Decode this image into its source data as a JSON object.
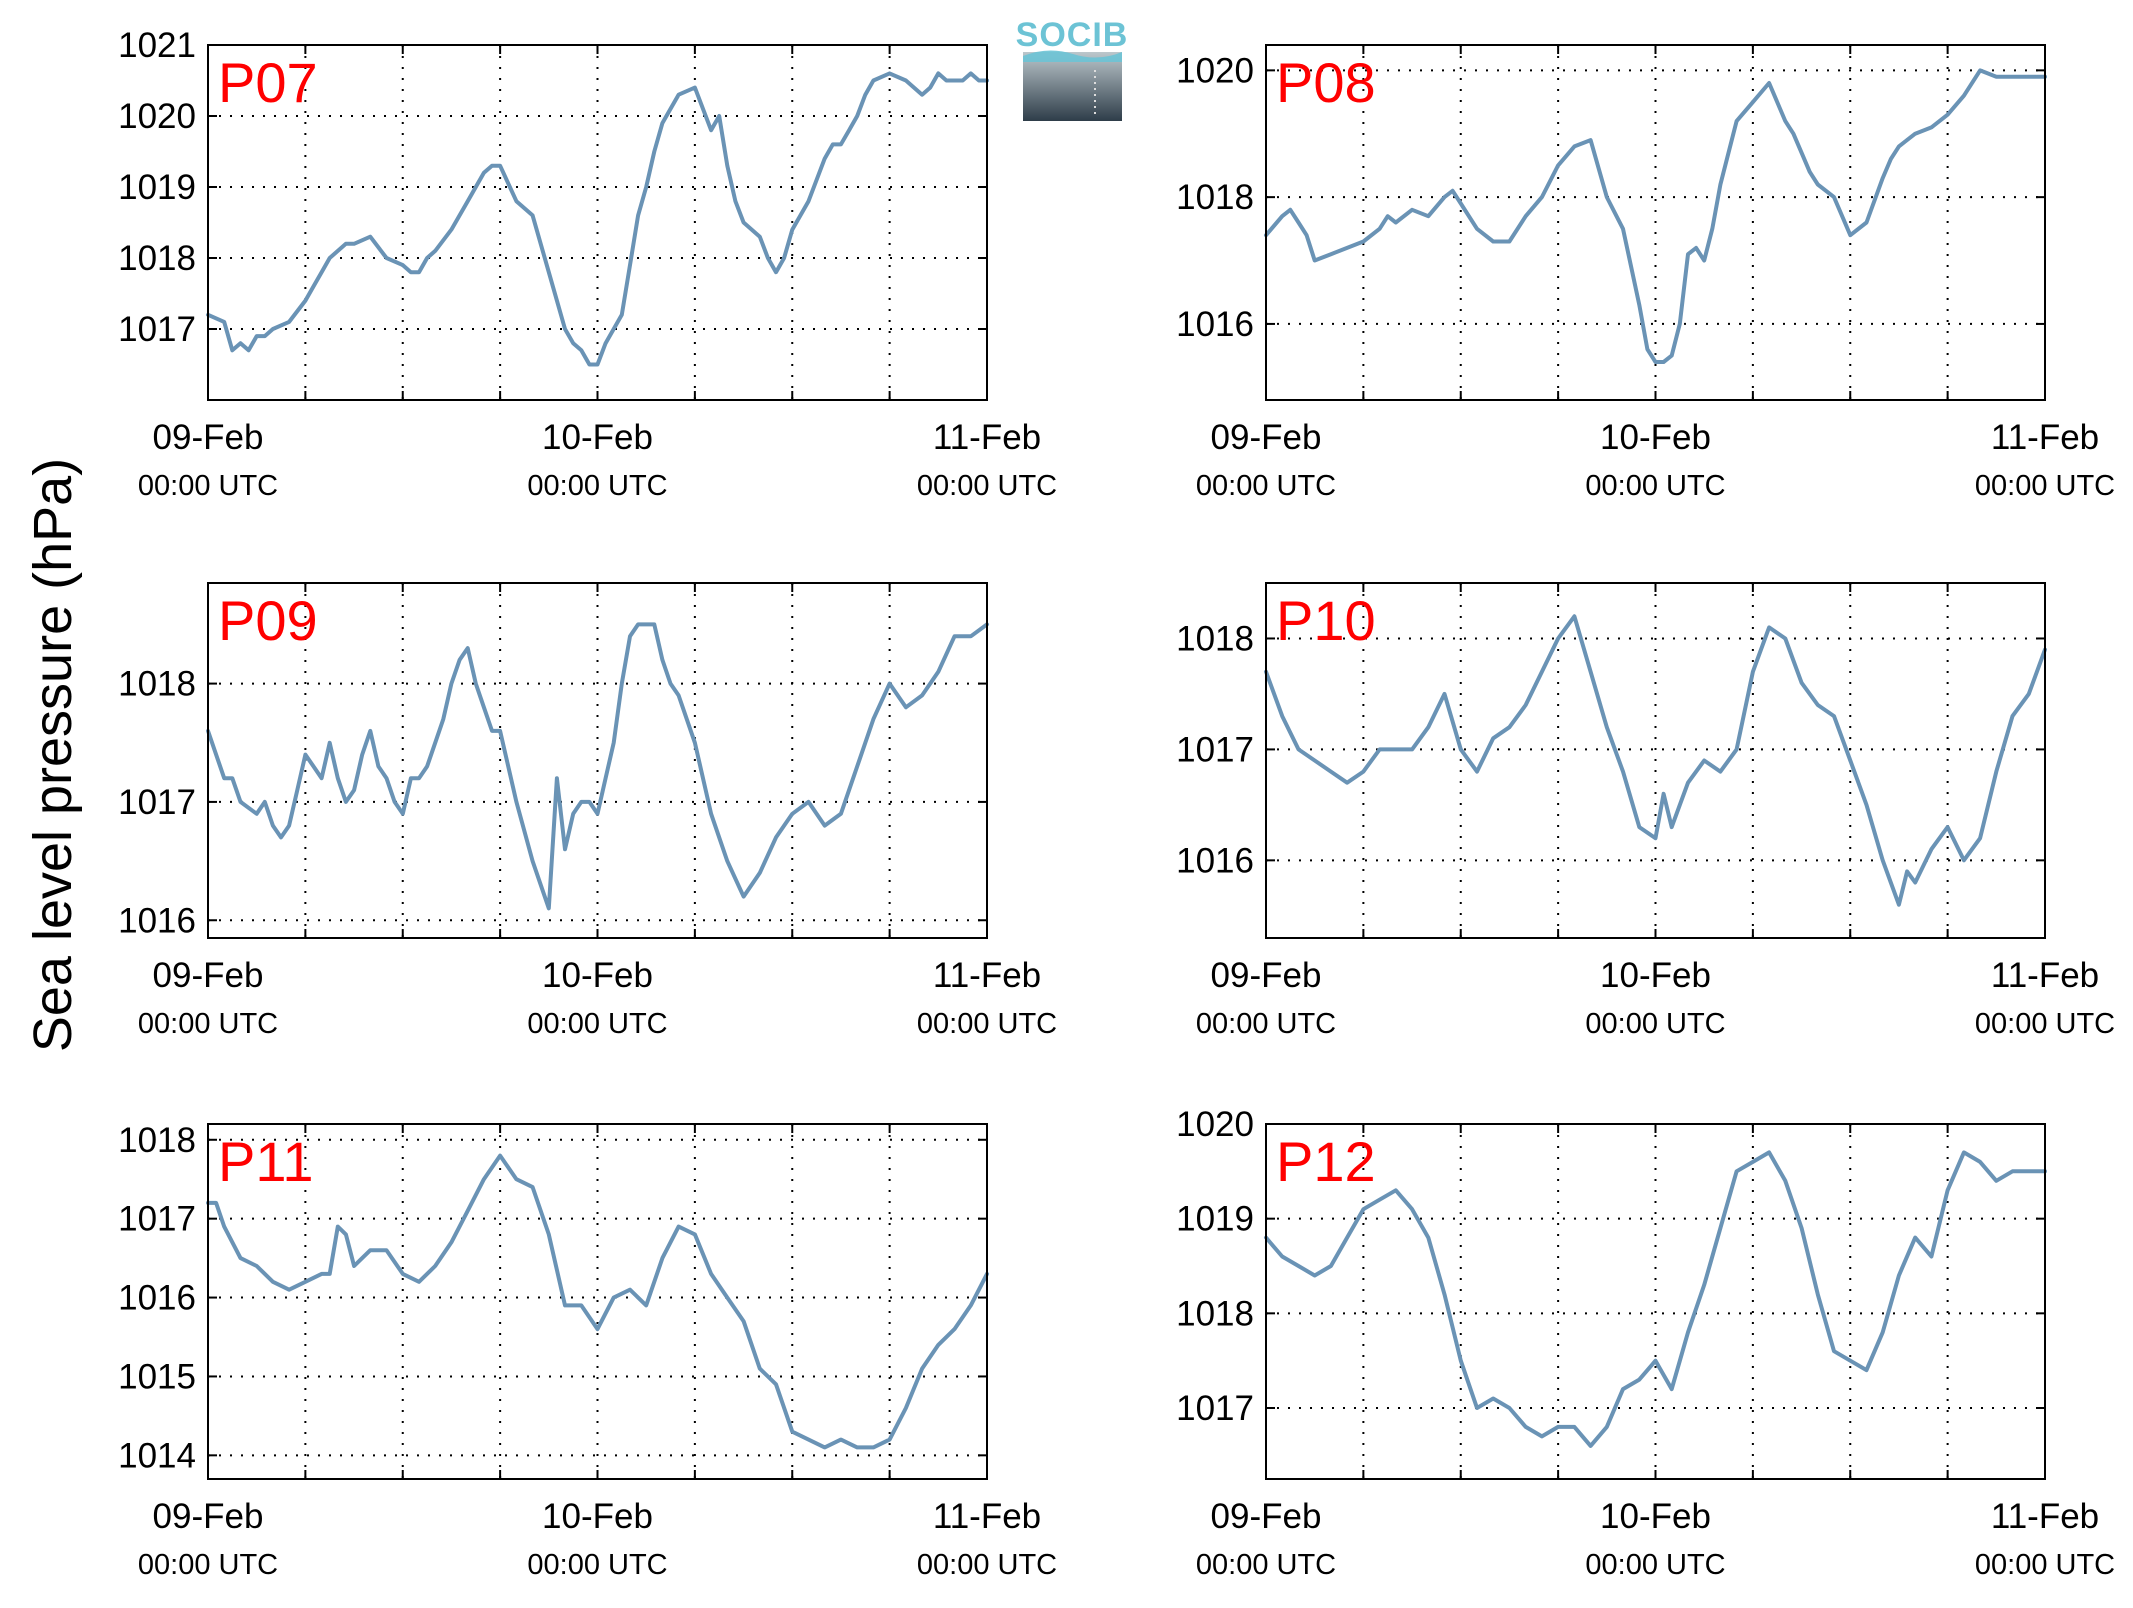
{
  "figure": {
    "ylabel": "Sea level pressure (hPa)",
    "logo": {
      "text": "SOCIB",
      "color_top": "#6cc3d5",
      "color_bottom": "#2e3d49"
    },
    "line_color": "#6a93b5",
    "station_label_color": "#ff0000"
  },
  "chart_data": [
    {
      "type": "line",
      "station": "P07",
      "ylim": [
        1016.0,
        1021.0
      ],
      "yticks": [
        1017,
        1018,
        1019,
        1020,
        1021
      ],
      "xticks": [
        {
          "date": "09-Feb",
          "time": "00:00 UTC"
        },
        {
          "date": "10-Feb",
          "time": "00:00 UTC"
        },
        {
          "date": "11-Feb",
          "time": "00:00 UTC"
        }
      ],
      "grid": true,
      "x_hours": [
        0,
        2,
        3,
        4,
        5,
        6,
        7,
        8,
        10,
        12,
        13,
        14,
        15,
        16,
        17,
        18,
        20,
        22,
        24,
        25,
        26,
        27,
        28,
        30,
        32,
        33,
        34,
        35,
        36,
        38,
        40,
        42,
        43,
        44,
        45,
        46,
        47,
        48,
        49,
        50,
        51,
        52,
        53,
        54,
        55,
        56,
        57,
        58,
        60,
        62,
        63,
        64,
        65,
        66,
        68,
        69,
        70,
        71,
        72,
        74,
        76,
        77,
        78,
        79,
        80,
        81,
        82,
        84,
        86,
        88,
        89,
        90,
        91,
        92,
        93,
        94,
        95,
        96
      ],
      "values": [
        1017.2,
        1017.1,
        1016.7,
        1016.8,
        1016.7,
        1016.9,
        1016.9,
        1017.0,
        1017.1,
        1017.4,
        1017.6,
        1017.8,
        1018.0,
        1018.1,
        1018.2,
        1018.2,
        1018.3,
        1018.0,
        1017.9,
        1017.8,
        1017.8,
        1018.0,
        1018.1,
        1018.4,
        1018.8,
        1019.0,
        1019.2,
        1019.3,
        1019.3,
        1018.8,
        1018.6,
        1017.8,
        1017.4,
        1017.0,
        1016.8,
        1016.7,
        1016.5,
        1016.5,
        1016.8,
        1017.0,
        1017.2,
        1017.9,
        1018.6,
        1019.0,
        1019.5,
        1019.9,
        1020.1,
        1020.3,
        1020.4,
        1019.8,
        1020.0,
        1019.3,
        1018.8,
        1018.5,
        1018.3,
        1018.0,
        1017.8,
        1018.0,
        1018.4,
        1018.8,
        1019.4,
        1019.6,
        1019.6,
        1019.8,
        1020.0,
        1020.3,
        1020.5,
        1020.6,
        1020.5,
        1020.3,
        1020.4,
        1020.6,
        1020.5,
        1020.5,
        1020.5,
        1020.6,
        1020.5,
        1020.5
      ]
    },
    {
      "type": "line",
      "station": "P08",
      "ylim": [
        1014.8,
        1020.4
      ],
      "yticks": [
        1016,
        1018,
        1020
      ],
      "xticks": [
        {
          "date": "09-Feb",
          "time": "00:00 UTC"
        },
        {
          "date": "10-Feb",
          "time": "00:00 UTC"
        },
        {
          "date": "11-Feb",
          "time": "00:00 UTC"
        }
      ],
      "grid": true,
      "x_hours": [
        0,
        2,
        3,
        4,
        5,
        6,
        8,
        10,
        12,
        14,
        15,
        16,
        18,
        20,
        22,
        23,
        24,
        26,
        28,
        30,
        32,
        34,
        36,
        38,
        40,
        42,
        44,
        46,
        47,
        48,
        49,
        50,
        51,
        52,
        53,
        54,
        55,
        56,
        58,
        60,
        62,
        64,
        65,
        66,
        67,
        68,
        70,
        72,
        74,
        76,
        77,
        78,
        80,
        82,
        84,
        86,
        88,
        90,
        92,
        94,
        96
      ],
      "values": [
        1017.4,
        1017.7,
        1017.8,
        1017.6,
        1017.4,
        1017.0,
        1017.1,
        1017.2,
        1017.3,
        1017.5,
        1017.7,
        1017.6,
        1017.8,
        1017.7,
        1018.0,
        1018.1,
        1017.9,
        1017.5,
        1017.3,
        1017.3,
        1017.7,
        1018.0,
        1018.5,
        1018.8,
        1018.9,
        1018.0,
        1017.5,
        1016.3,
        1015.6,
        1015.4,
        1015.4,
        1015.5,
        1016.0,
        1017.1,
        1017.2,
        1017.0,
        1017.5,
        1018.2,
        1019.2,
        1019.5,
        1019.8,
        1019.2,
        1019.0,
        1018.7,
        1018.4,
        1018.2,
        1018.0,
        1017.4,
        1017.6,
        1018.3,
        1018.6,
        1018.8,
        1019.0,
        1019.1,
        1019.3,
        1019.6,
        1020.0,
        1019.9,
        1019.9,
        1019.9,
        1019.9
      ]
    },
    {
      "type": "line",
      "station": "P09",
      "ylim": [
        1015.85,
        1018.85
      ],
      "yticks": [
        1016,
        1017,
        1018
      ],
      "xticks": [
        {
          "date": "09-Feb",
          "time": "00:00 UTC"
        },
        {
          "date": "10-Feb",
          "time": "00:00 UTC"
        },
        {
          "date": "11-Feb",
          "time": "00:00 UTC"
        }
      ],
      "grid": true,
      "x_hours": [
        0,
        2,
        3,
        4,
        6,
        7,
        8,
        9,
        10,
        11,
        12,
        13,
        14,
        15,
        16,
        17,
        18,
        19,
        20,
        21,
        22,
        23,
        24,
        25,
        26,
        27,
        28,
        29,
        30,
        31,
        32,
        33,
        34,
        35,
        36,
        38,
        40,
        42,
        43,
        44,
        45,
        46,
        47,
        48,
        49,
        50,
        51,
        52,
        53,
        54,
        55,
        56,
        57,
        58,
        60,
        62,
        64,
        66,
        68,
        70,
        72,
        74,
        76,
        78,
        80,
        82,
        84,
        86,
        88,
        90,
        92,
        93,
        94,
        96
      ],
      "values": [
        1017.6,
        1017.2,
        1017.2,
        1017.0,
        1016.9,
        1017.0,
        1016.8,
        1016.7,
        1016.8,
        1017.1,
        1017.4,
        1017.3,
        1017.2,
        1017.5,
        1017.2,
        1017.0,
        1017.1,
        1017.4,
        1017.6,
        1017.3,
        1017.2,
        1017.0,
        1016.9,
        1017.2,
        1017.2,
        1017.3,
        1017.5,
        1017.7,
        1018.0,
        1018.2,
        1018.3,
        1018.0,
        1017.8,
        1017.6,
        1017.6,
        1017.0,
        1016.5,
        1016.1,
        1017.2,
        1016.6,
        1016.9,
        1017.0,
        1017.0,
        1016.9,
        1017.2,
        1017.5,
        1018.0,
        1018.4,
        1018.5,
        1018.5,
        1018.5,
        1018.2,
        1018.0,
        1017.9,
        1017.5,
        1016.9,
        1016.5,
        1016.2,
        1016.4,
        1016.7,
        1016.9,
        1017.0,
        1016.8,
        1016.9,
        1017.3,
        1017.7,
        1018.0,
        1017.8,
        1017.9,
        1018.1,
        1018.4,
        1018.4,
        1018.4,
        1018.5
      ]
    },
    {
      "type": "line",
      "station": "P10",
      "ylim": [
        1015.3,
        1018.5
      ],
      "yticks": [
        1016,
        1017,
        1018
      ],
      "xticks": [
        {
          "date": "09-Feb",
          "time": "00:00 UTC"
        },
        {
          "date": "10-Feb",
          "time": "00:00 UTC"
        },
        {
          "date": "11-Feb",
          "time": "00:00 UTC"
        }
      ],
      "grid": true,
      "x_hours": [
        0,
        2,
        4,
        6,
        8,
        10,
        12,
        14,
        16,
        18,
        20,
        22,
        24,
        26,
        28,
        30,
        32,
        34,
        36,
        38,
        40,
        42,
        44,
        46,
        48,
        49,
        50,
        51,
        52,
        54,
        56,
        58,
        60,
        62,
        64,
        66,
        68,
        70,
        72,
        74,
        76,
        78,
        79,
        80,
        82,
        84,
        86,
        88,
        90,
        92,
        94,
        96
      ],
      "values": [
        1017.7,
        1017.3,
        1017.0,
        1016.9,
        1016.8,
        1016.7,
        1016.8,
        1017.0,
        1017.0,
        1017.0,
        1017.2,
        1017.5,
        1017.0,
        1016.8,
        1017.1,
        1017.2,
        1017.4,
        1017.7,
        1018.0,
        1018.2,
        1017.7,
        1017.2,
        1016.8,
        1016.3,
        1016.2,
        1016.6,
        1016.3,
        1016.5,
        1016.7,
        1016.9,
        1016.8,
        1017.0,
        1017.7,
        1018.1,
        1018.0,
        1017.6,
        1017.4,
        1017.3,
        1016.9,
        1016.5,
        1016.0,
        1015.6,
        1015.9,
        1015.8,
        1016.1,
        1016.3,
        1016.0,
        1016.2,
        1016.8,
        1017.3,
        1017.5,
        1017.9
      ]
    },
    {
      "type": "line",
      "station": "P11",
      "ylim": [
        1013.7,
        1018.2
      ],
      "yticks": [
        1014,
        1015,
        1016,
        1017,
        1018
      ],
      "xticks": [
        {
          "date": "09-Feb",
          "time": "00:00 UTC"
        },
        {
          "date": "10-Feb",
          "time": "00:00 UTC"
        },
        {
          "date": "11-Feb",
          "time": "00:00 UTC"
        }
      ],
      "grid": true,
      "x_hours": [
        0,
        1,
        2,
        4,
        6,
        8,
        10,
        12,
        14,
        15,
        16,
        17,
        18,
        19,
        20,
        22,
        24,
        26,
        28,
        30,
        32,
        34,
        36,
        38,
        40,
        42,
        44,
        46,
        48,
        50,
        52,
        54,
        56,
        58,
        60,
        62,
        64,
        66,
        68,
        70,
        72,
        74,
        76,
        78,
        80,
        82,
        84,
        86,
        88,
        90,
        92,
        94,
        96
      ],
      "values": [
        1017.2,
        1017.2,
        1016.9,
        1016.5,
        1016.4,
        1016.2,
        1016.1,
        1016.2,
        1016.3,
        1016.3,
        1016.9,
        1016.8,
        1016.4,
        1016.5,
        1016.6,
        1016.6,
        1016.3,
        1016.2,
        1016.4,
        1016.7,
        1017.1,
        1017.5,
        1017.8,
        1017.5,
        1017.4,
        1016.8,
        1015.9,
        1015.9,
        1015.6,
        1016.0,
        1016.1,
        1015.9,
        1016.5,
        1016.9,
        1016.8,
        1016.3,
        1016.0,
        1015.7,
        1015.1,
        1014.9,
        1014.3,
        1014.2,
        1014.1,
        1014.2,
        1014.1,
        1014.1,
        1014.2,
        1014.6,
        1015.1,
        1015.4,
        1015.6,
        1015.9,
        1016.3
      ]
    },
    {
      "type": "line",
      "station": "P12",
      "ylim": [
        1016.25,
        1020.0
      ],
      "yticks": [
        1017,
        1018,
        1019,
        1020
      ],
      "xticks": [
        {
          "date": "09-Feb",
          "time": "00:00 UTC"
        },
        {
          "date": "10-Feb",
          "time": "00:00 UTC"
        },
        {
          "date": "11-Feb",
          "time": "00:00 UTC"
        }
      ],
      "grid": true,
      "x_hours": [
        0,
        2,
        4,
        6,
        8,
        10,
        12,
        14,
        16,
        18,
        20,
        22,
        24,
        26,
        28,
        30,
        32,
        34,
        36,
        38,
        40,
        42,
        44,
        46,
        48,
        50,
        52,
        54,
        56,
        58,
        60,
        62,
        64,
        66,
        68,
        70,
        72,
        74,
        76,
        78,
        80,
        82,
        84,
        86,
        88,
        90,
        92,
        94,
        96
      ],
      "values": [
        1018.8,
        1018.6,
        1018.5,
        1018.4,
        1018.5,
        1018.8,
        1019.1,
        1019.2,
        1019.3,
        1019.1,
        1018.8,
        1018.2,
        1017.5,
        1017.0,
        1017.1,
        1017.0,
        1016.8,
        1016.7,
        1016.8,
        1016.8,
        1016.6,
        1016.8,
        1017.2,
        1017.3,
        1017.5,
        1017.2,
        1017.8,
        1018.3,
        1018.9,
        1019.5,
        1019.6,
        1019.7,
        1019.4,
        1018.9,
        1018.2,
        1017.6,
        1017.5,
        1017.4,
        1017.8,
        1018.4,
        1018.8,
        1018.6,
        1019.3,
        1019.7,
        1019.6,
        1019.4,
        1019.5,
        1019.5,
        1019.5
      ]
    }
  ]
}
